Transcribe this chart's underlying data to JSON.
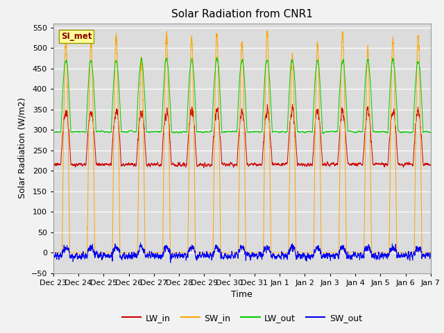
{
  "title": "Solar Radiation from CNR1",
  "xlabel": "Time",
  "ylabel": "Solar Radiation (W/m2)",
  "ylim": [
    -50,
    560
  ],
  "yticks": [
    -50,
    0,
    50,
    100,
    150,
    200,
    250,
    300,
    350,
    400,
    450,
    500,
    550
  ],
  "annotation": "SI_met",
  "annotation_color": "#8B0000",
  "annotation_bg": "#FFFF99",
  "annotation_edge": "#999900",
  "fig_bg": "#F2F2F2",
  "plot_bg": "#DCDCDC",
  "grid_color": "#FFFFFF",
  "colors": {
    "LW_in": "#CC0000",
    "SW_in": "#FFA500",
    "LW_out": "#00CC00",
    "SW_out": "#0000EE"
  },
  "n_days": 15,
  "tick_labels": [
    "Dec 23",
    "Dec 24",
    "Dec 25",
    "Dec 26",
    "Dec 27",
    "Dec 28",
    "Dec 29",
    "Dec 30",
    "Dec 31",
    "Jan 1",
    "Jan 2",
    "Jan 3",
    "Jan 4",
    "Jan 5",
    "Jan 6",
    "Jan 7"
  ]
}
